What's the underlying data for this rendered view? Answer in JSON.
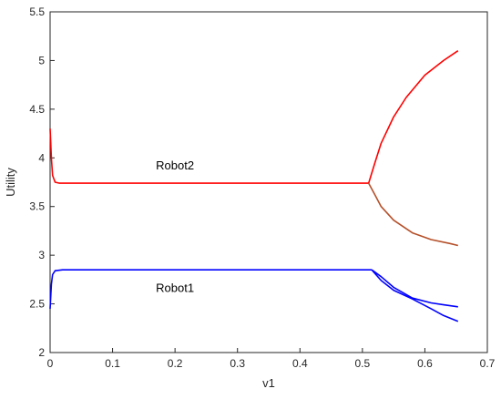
{
  "chart_data": {
    "type": "line",
    "title": "",
    "xlabel": "v1",
    "ylabel": "Utility",
    "xlim": [
      0,
      0.7
    ],
    "ylim": [
      2,
      5.5
    ],
    "xticks": [
      "0",
      "0.1",
      "0.2",
      "0.3",
      "0.4",
      "0.5",
      "0.6",
      "0.7"
    ],
    "yticks": [
      "2",
      "2.5",
      "3",
      "3.5",
      "4",
      "4.5",
      "5",
      "5.5"
    ],
    "grid": false,
    "annotations": [
      {
        "text": "Robot2",
        "x": 0.2,
        "y": 3.88
      },
      {
        "text": "Robot1",
        "x": 0.2,
        "y": 2.62
      }
    ],
    "series": [
      {
        "color": "#ff0000",
        "x": [
          0,
          0.002,
          0.004,
          0.008,
          0.015,
          0.03,
          0.1,
          0.2,
          0.3,
          0.4,
          0.5,
          0.51
        ],
        "y": [
          4.3,
          4.0,
          3.82,
          3.75,
          3.74,
          3.74,
          3.74,
          3.74,
          3.74,
          3.74,
          3.74,
          3.74
        ]
      },
      {
        "color": "#ff0000",
        "x": [
          0.51,
          0.52,
          0.53,
          0.55,
          0.57,
          0.6,
          0.63,
          0.653
        ],
        "y": [
          3.74,
          3.95,
          4.15,
          4.42,
          4.62,
          4.85,
          5.0,
          5.1
        ]
      },
      {
        "color": "#b5502a",
        "x": [
          0.51,
          0.52,
          0.53,
          0.55,
          0.58,
          0.61,
          0.64,
          0.653
        ],
        "y": [
          3.74,
          3.62,
          3.5,
          3.36,
          3.23,
          3.16,
          3.12,
          3.1
        ]
      },
      {
        "color": "#0000ff",
        "x": [
          0,
          0.002,
          0.004,
          0.008,
          0.02,
          0.1,
          0.2,
          0.3,
          0.4,
          0.5,
          0.515
        ],
        "y": [
          2.45,
          2.7,
          2.8,
          2.84,
          2.85,
          2.85,
          2.85,
          2.85,
          2.85,
          2.85,
          2.85
        ]
      },
      {
        "color": "#0000ff",
        "x": [
          0.515,
          0.53,
          0.55,
          0.58,
          0.61,
          0.63,
          0.653
        ],
        "y": [
          2.85,
          2.78,
          2.67,
          2.56,
          2.51,
          2.49,
          2.47
        ]
      },
      {
        "color": "#0000ff",
        "x": [
          0.515,
          0.53,
          0.55,
          0.58,
          0.61,
          0.63,
          0.653
        ],
        "y": [
          2.85,
          2.74,
          2.64,
          2.55,
          2.45,
          2.38,
          2.32
        ]
      }
    ]
  }
}
